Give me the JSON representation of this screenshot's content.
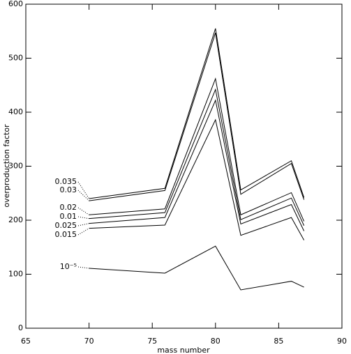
{
  "chart_data": {
    "type": "line",
    "xlabel": "mass number",
    "ylabel": "overproduction factor",
    "x": [
      70,
      76,
      80,
      82,
      86,
      87
    ],
    "series": [
      {
        "name": "0.035",
        "color": "#000000",
        "values": [
          240,
          259,
          555,
          256,
          310,
          242
        ]
      },
      {
        "name": "0.03",
        "color": "#000000",
        "values": [
          236,
          255,
          547,
          248,
          305,
          238
        ]
      },
      {
        "name": "0.02",
        "color": "#000000",
        "values": [
          210,
          221,
          462,
          210,
          251,
          198
        ]
      },
      {
        "name": "0.01",
        "color": "#000000",
        "values": [
          203,
          214,
          442,
          201,
          241,
          190
        ]
      },
      {
        "name": "0.025",
        "color": "#000000",
        "values": [
          194,
          205,
          422,
          193,
          229,
          180
        ]
      },
      {
        "name": "0.015",
        "color": "#000000",
        "values": [
          185,
          191,
          386,
          172,
          205,
          163
        ]
      },
      {
        "name": "10⁻⁵",
        "color": "#000000",
        "values": [
          111,
          102,
          152,
          71,
          87,
          76
        ]
      }
    ],
    "xlim": [
      65,
      90
    ],
    "xticks": [
      65,
      70,
      75,
      80,
      85,
      90
    ],
    "ylim": [
      0,
      600
    ],
    "yticks": [
      0,
      100,
      200,
      300,
      400,
      500,
      600
    ],
    "grid": false
  }
}
